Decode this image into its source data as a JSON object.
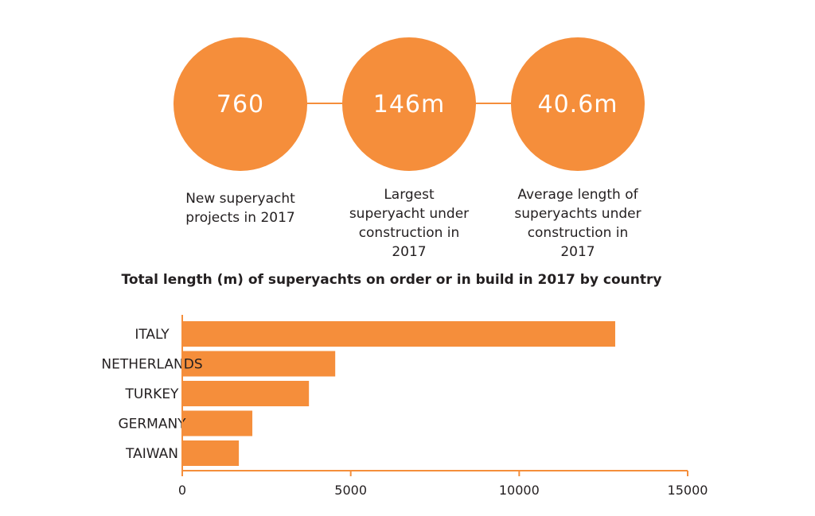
{
  "stats": [
    {
      "value": "760",
      "caption": [
        "New superyacht",
        "projects in 2017"
      ]
    },
    {
      "value": "146m",
      "caption": [
        "Largest",
        "superyacht under",
        "construction in",
        "2017"
      ]
    },
    {
      "value": "40.6m",
      "caption": [
        "Average length of",
        "superyachts under",
        "construction in",
        "2017"
      ]
    }
  ],
  "colors": {
    "accent": "#f58e3b",
    "text": "#231f20"
  },
  "chart_data": {
    "type": "bar",
    "orientation": "horizontal",
    "title": "Total length (m) of superyachts on order or in build in 2017 by country",
    "categories": [
      "ITALY",
      "NETHERLANDS",
      "TURKEY",
      "GERMANY",
      "TAIWAN"
    ],
    "values": [
      12850,
      4540,
      3760,
      2080,
      1680
    ],
    "xlim": [
      0,
      15000
    ],
    "xticks": [
      "0",
      "5000",
      "10000",
      "15000"
    ],
    "grid": false,
    "legend": "none"
  }
}
